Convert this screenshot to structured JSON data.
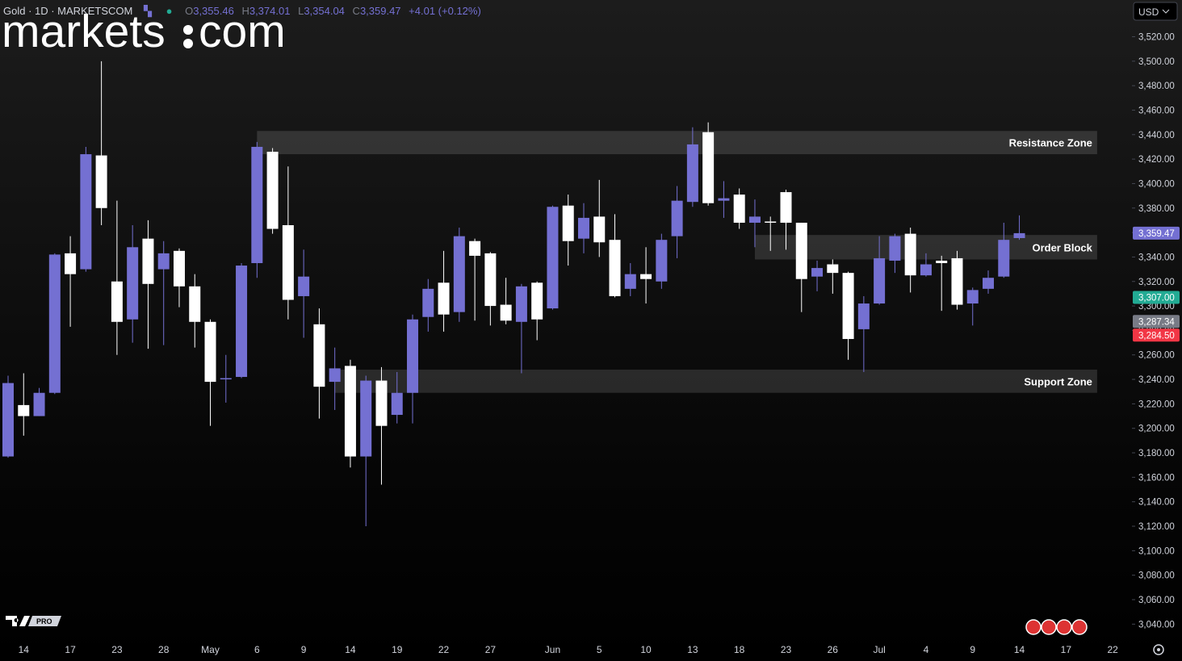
{
  "chart_data": {
    "type": "candlestick",
    "categories": [
      null,
      "14",
      null,
      null,
      "17",
      null,
      null,
      "23",
      null,
      null,
      "28",
      null,
      null,
      "May",
      null,
      null,
      "6",
      null,
      null,
      "9",
      null,
      null,
      "14",
      null,
      null,
      "19",
      null,
      null,
      "22",
      null,
      null,
      "27",
      null,
      null,
      null,
      "Jun",
      null,
      null,
      "5",
      null,
      null,
      "10",
      null,
      null,
      "13",
      null,
      null,
      "18",
      null,
      null,
      "23",
      null,
      null,
      "26",
      null,
      null,
      "Jul",
      null,
      null,
      "4",
      null,
      null,
      "9",
      null,
      null,
      "14",
      null,
      null,
      "17",
      null,
      null,
      "22"
    ],
    "open": [
      3177,
      3219,
      3210,
      3229,
      3343,
      3330,
      3423,
      3320,
      3289,
      3355,
      3330,
      3345,
      3316,
      3287,
      3240,
      3242,
      3335,
      3426,
      3366,
      3308,
      3285,
      3238,
      3251,
      3177,
      3239,
      3211,
      3229,
      3291,
      3319,
      3295,
      3353,
      3343,
      3301,
      3287,
      3319,
      3298,
      3382,
      3355,
      3373,
      3354,
      3314,
      3326,
      3320,
      3357,
      3385,
      3442,
      3386,
      3391,
      3368,
      3369,
      3393,
      3368,
      3324,
      3334,
      3327,
      3281,
      3302,
      3337,
      3359,
      3325,
      3337,
      3339,
      3302,
      3314,
      3324,
      3355.46,
      null,
      null,
      null,
      null,
      null,
      null
    ],
    "high": [
      3243,
      3245,
      3233,
      3343,
      3357,
      3430,
      3500,
      3386,
      3366,
      3370,
      3353,
      3347,
      3326,
      3289,
      3260,
      3335,
      3434,
      3429,
      3414,
      3346,
      3298,
      3266,
      3256,
      3243,
      3250,
      3246,
      3293,
      3322,
      3345,
      3364,
      3355,
      3344,
      3323,
      3318,
      3320,
      3382,
      3391,
      3384,
      3403,
      3375,
      3335,
      3348,
      3359,
      3398,
      3446,
      3450,
      3402,
      3396,
      3387,
      3373,
      3395,
      3368,
      3337,
      3338,
      3328,
      3308,
      3357,
      3359,
      3364,
      3343,
      3341,
      3345,
      3315,
      3329,
      3368,
      3374.01,
      null,
      null,
      null,
      null,
      null,
      null
    ],
    "low": [
      3176,
      3194,
      3210,
      3228,
      3283,
      3328,
      3366,
      3260,
      3270,
      3265,
      3268,
      3299,
      3266,
      3202,
      3221,
      3241,
      3323,
      3359,
      3289,
      3274,
      3208,
      3215,
      3168,
      3120,
      3154,
      3204,
      3204,
      3279,
      3279,
      3287,
      3288,
      3284,
      3285,
      3245,
      3272,
      3297,
      3333,
      3343,
      3340,
      3307,
      3308,
      3302,
      3314,
      3339,
      3381,
      3382,
      3372,
      3363,
      3348,
      3345,
      3346,
      3295,
      3312,
      3310,
      3256,
      3246,
      3301,
      3327,
      3311,
      3324,
      3296,
      3297,
      3284,
      3310,
      3323,
      3354.04,
      null,
      null,
      null,
      null,
      null,
      null
    ],
    "close": [
      3237,
      3210,
      3229,
      3342,
      3326,
      3424,
      3380,
      3287,
      3348,
      3318,
      3343,
      3316,
      3287,
      3238,
      3241,
      3333,
      3430,
      3363,
      3305,
      3324,
      3234,
      3249,
      3177,
      3239,
      3202,
      3229,
      3289,
      3314,
      3293,
      3357,
      3341,
      3300,
      3288,
      3316,
      3289,
      3381,
      3353,
      3372,
      3352,
      3308,
      3326,
      3322,
      3354,
      3386,
      3432,
      3384,
      3388,
      3368,
      3373,
      3368,
      3368,
      3322,
      3331,
      3327,
      3273,
      3302,
      3339,
      3357,
      3325,
      3334,
      3335,
      3301,
      3313,
      3323,
      3354,
      3359.47,
      null,
      null,
      null,
      null,
      null,
      null
    ],
    "up_color": "#7470d2",
    "down_color": "#ffffff",
    "ylim": [
      3029,
      3550
    ],
    "yticks": [
      {
        "value": 3040,
        "label": "3,040.00"
      },
      {
        "value": 3060,
        "label": "3,060.00"
      },
      {
        "value": 3080,
        "label": "3,080.00"
      },
      {
        "value": 3100,
        "label": "3,100.00"
      },
      {
        "value": 3120,
        "label": "3,120.00"
      },
      {
        "value": 3140,
        "label": "3,140.00"
      },
      {
        "value": 3160,
        "label": "3,160.00"
      },
      {
        "value": 3180,
        "label": "3,180.00"
      },
      {
        "value": 3200,
        "label": "3,200.00"
      },
      {
        "value": 3220,
        "label": "3,220.00"
      },
      {
        "value": 3240,
        "label": "3,240.00"
      },
      {
        "value": 3260,
        "label": "3,260.00"
      },
      {
        "value": 3280,
        "label": "3,280.00"
      },
      {
        "value": 3300,
        "label": "3,300.00"
      },
      {
        "value": 3320,
        "label": "3,320.00"
      },
      {
        "value": 3340,
        "label": "3,340.00"
      },
      {
        "value": 3360,
        "label": "3,360.00"
      },
      {
        "value": 3380,
        "label": "3,380.00"
      },
      {
        "value": 3400,
        "label": "3,400.00"
      },
      {
        "value": 3420,
        "label": "3,420.00"
      },
      {
        "value": 3440,
        "label": "3,440.00"
      },
      {
        "value": 3460,
        "label": "3,460.00"
      },
      {
        "value": 3480,
        "label": "3,480.00"
      },
      {
        "value": 3500,
        "label": "3,500.00"
      },
      {
        "value": 3520,
        "label": "3,520.00"
      }
    ],
    "zones": [
      {
        "label": "Resistance Zone",
        "ymin": 3424,
        "ymax": 3443,
        "x": [
          16,
          70
        ]
      },
      {
        "label": "Order Block",
        "ymin": 3338,
        "ymax": 3358,
        "x": [
          48,
          70
        ]
      },
      {
        "label": "Support Zone",
        "ymin": 3229,
        "ymax": 3248,
        "x": [
          21,
          70
        ]
      }
    ],
    "price_labels": [
      {
        "value": 3359.47,
        "label": "3,359.47",
        "color": "#7470d2"
      },
      {
        "value": 3307,
        "label": "3,307.00",
        "color": "#22ab94"
      },
      {
        "value": 3287.34,
        "label": "3,287.34",
        "color": "#787b86"
      },
      {
        "value": 3284.5,
        "label": "3,284.50",
        "color": "#f23645"
      }
    ]
  },
  "header": {
    "symbol": "Gold · 1D · MARKETSCOM",
    "ohlc": [
      {
        "key": "O",
        "value": "3,355.46"
      },
      {
        "key": "H",
        "value": "3,374.01"
      },
      {
        "key": "L",
        "value": "3,354.04"
      },
      {
        "key": "C",
        "value": "3,359.47"
      }
    ],
    "change": "+4.01 (+0.12%)"
  },
  "branding": {
    "left": "markets",
    "right": "com",
    "badge": "PRO"
  },
  "currency": "USD"
}
